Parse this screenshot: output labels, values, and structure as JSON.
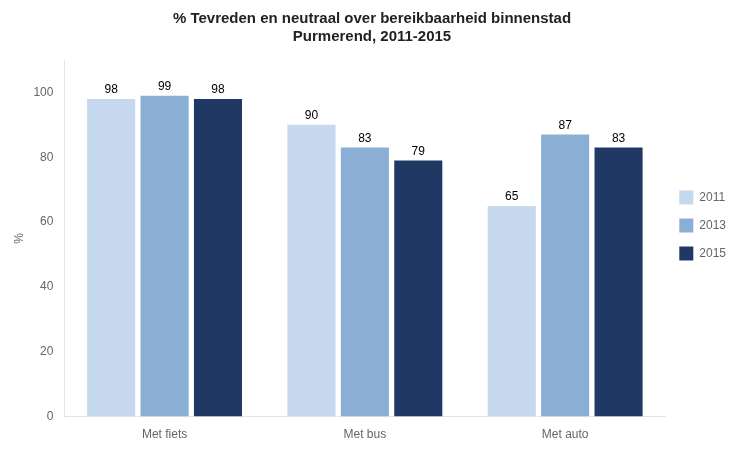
{
  "chart_data": {
    "type": "bar",
    "title": "% Tevreden en neutraal over bereikbaarheid binnenstad\nPurmerend, 2011-2015",
    "categories": [
      "Met fiets",
      "Met bus",
      "Met auto"
    ],
    "series": [
      {
        "name": "2011",
        "values": [
          98,
          90,
          65
        ],
        "color": "#c5d8ed"
      },
      {
        "name": "2013",
        "values": [
          99,
          83,
          87
        ],
        "color": "#8bafd4"
      },
      {
        "name": "2015",
        "values": [
          98,
          79,
          83
        ],
        "color": "#1f3864"
      }
    ],
    "ylabel": "%",
    "ylim": [
      0,
      110
    ],
    "yticks": [
      0,
      20,
      40,
      60,
      80,
      100
    ],
    "grid": false,
    "legend": "right",
    "data_labels": true
  }
}
